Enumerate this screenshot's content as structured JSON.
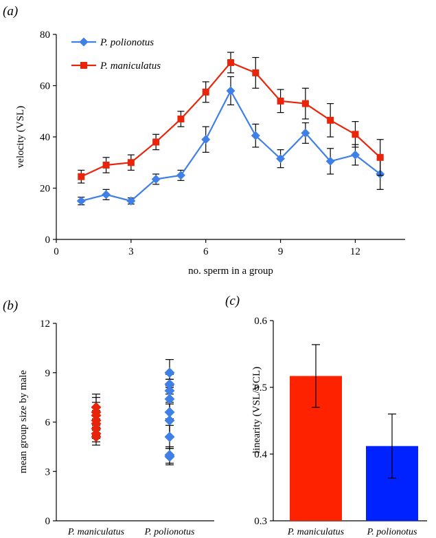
{
  "chart_data": [
    {
      "panel_label": "(a)",
      "type": "line",
      "xlabel": "no. sperm in a group",
      "ylabel": "velocity (VSL)",
      "xlim": [
        0,
        14
      ],
      "ylim": [
        0,
        80
      ],
      "xticks": [
        0,
        3,
        6,
        9,
        12
      ],
      "yticks": [
        0,
        20,
        40,
        60,
        80
      ],
      "legend_position": "top-left",
      "series": [
        {
          "name": "P. polionotus",
          "color": "#3f7fe6",
          "marker": "diamond",
          "x": [
            1,
            2,
            3,
            4,
            5,
            6,
            7,
            8,
            9,
            10,
            11,
            12,
            13
          ],
          "y": [
            15,
            17.5,
            15,
            23.5,
            25,
            39,
            58,
            40.5,
            31.5,
            41.5,
            30.5,
            33,
            25.5
          ],
          "err": [
            1.5,
            2,
            1.2,
            2,
            2,
            5,
            5.5,
            4.5,
            3.5,
            4,
            5,
            4,
            6
          ]
        },
        {
          "name": "P. maniculatus",
          "color": "#e8240a",
          "marker": "square",
          "x": [
            1,
            2,
            3,
            4,
            5,
            6,
            7,
            8,
            9,
            10,
            11,
            12,
            13
          ],
          "y": [
            24.5,
            29,
            30,
            38,
            47,
            57.5,
            69,
            65,
            54,
            53,
            46.5,
            41,
            32
          ],
          "err": [
            2.5,
            3,
            3,
            3,
            3,
            4,
            4,
            6,
            4.5,
            6,
            6.5,
            5,
            7
          ]
        }
      ]
    },
    {
      "panel_label": "(b)",
      "type": "scatter",
      "ylabel": "mean group size by male",
      "ylim": [
        0,
        12
      ],
      "yticks": [
        0,
        3,
        6,
        9,
        12
      ],
      "categories": [
        "P. maniculatus",
        "P. polionotus"
      ],
      "series": [
        {
          "name": "P. maniculatus",
          "color": "#e8240a",
          "values": [
            5.1,
            5.3,
            5.6,
            5.9,
            6.1,
            6.4,
            6.6,
            6.9
          ],
          "err": [
            0.5,
            0.5,
            0.6,
            0.7,
            0.6,
            0.8,
            0.9,
            0.8
          ]
        },
        {
          "name": "P. polionotus",
          "color": "#3f7fe6",
          "values": [
            3.9,
            4.0,
            5.1,
            6.1,
            6.6,
            7.4,
            7.9,
            8.3,
            9.0
          ],
          "err": [
            0.5,
            0.5,
            0.7,
            1.0,
            1.5,
            1.2,
            0.7,
            0.6,
            0.8
          ]
        }
      ]
    },
    {
      "panel_label": "(c)",
      "type": "bar",
      "ylabel": "linearity (VSL/VCL)",
      "ylim": [
        0.3,
        0.6
      ],
      "yticks": [
        0.3,
        0.4,
        0.5,
        0.6
      ],
      "categories": [
        "P. maniculatus",
        "P. polionotus"
      ],
      "values": [
        0.517,
        0.412
      ],
      "err": [
        0.047,
        0.048
      ],
      "colors": [
        "#ff2200",
        "#0022ff"
      ]
    }
  ]
}
